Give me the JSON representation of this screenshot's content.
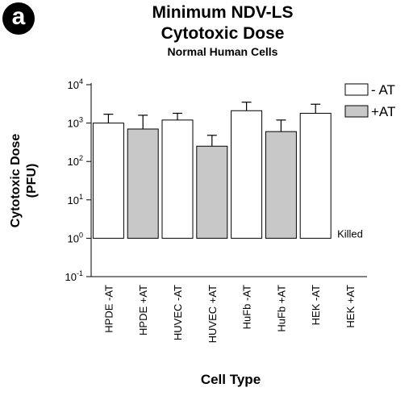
{
  "panel_label": "a",
  "chart_data": {
    "type": "bar",
    "title": [
      "Minimum NDV-LS",
      "Cytotoxic Dose"
    ],
    "subtitle": "Normal Human Cells",
    "xlabel": "Cell Type",
    "ylabel": [
      "Cytotoxic Dose",
      "(PFU)"
    ],
    "yscale": "log",
    "ylim": [
      0.1,
      10000
    ],
    "yticks": [
      0.1,
      1,
      10,
      100,
      1000,
      10000
    ],
    "ytick_labels": [
      {
        "base": "10",
        "exp": "-1"
      },
      {
        "base": "10",
        "exp": "0"
      },
      {
        "base": "10",
        "exp": "1"
      },
      {
        "base": "10",
        "exp": "2"
      },
      {
        "base": "10",
        "exp": "3"
      },
      {
        "base": "10",
        "exp": "4"
      }
    ],
    "categories": [
      "HPDE -AT",
      "HPDE +AT",
      "HUVEC -AT",
      "HUVEC +AT",
      "HuFb -AT",
      "HuFb +AT",
      "HEK -AT",
      "HEK +AT"
    ],
    "values": [
      1000,
      700,
      1200,
      250,
      2100,
      600,
      1800,
      null
    ],
    "error_upper": [
      1700,
      1600,
      1800,
      480,
      3500,
      1200,
      3100,
      null
    ],
    "treatment": [
      "-AT",
      "+AT",
      "-AT",
      "+AT",
      "-AT",
      "+AT",
      "-AT",
      "+AT"
    ],
    "legend": {
      "position": "top-right",
      "entries": [
        {
          "label": "- AT",
          "color": "#ffffff"
        },
        {
          "label": "+AT",
          "color": "#c8c8c8"
        }
      ]
    },
    "annotations": [
      {
        "text": "Killed",
        "category": "HEK +AT"
      }
    ],
    "grid": false
  }
}
